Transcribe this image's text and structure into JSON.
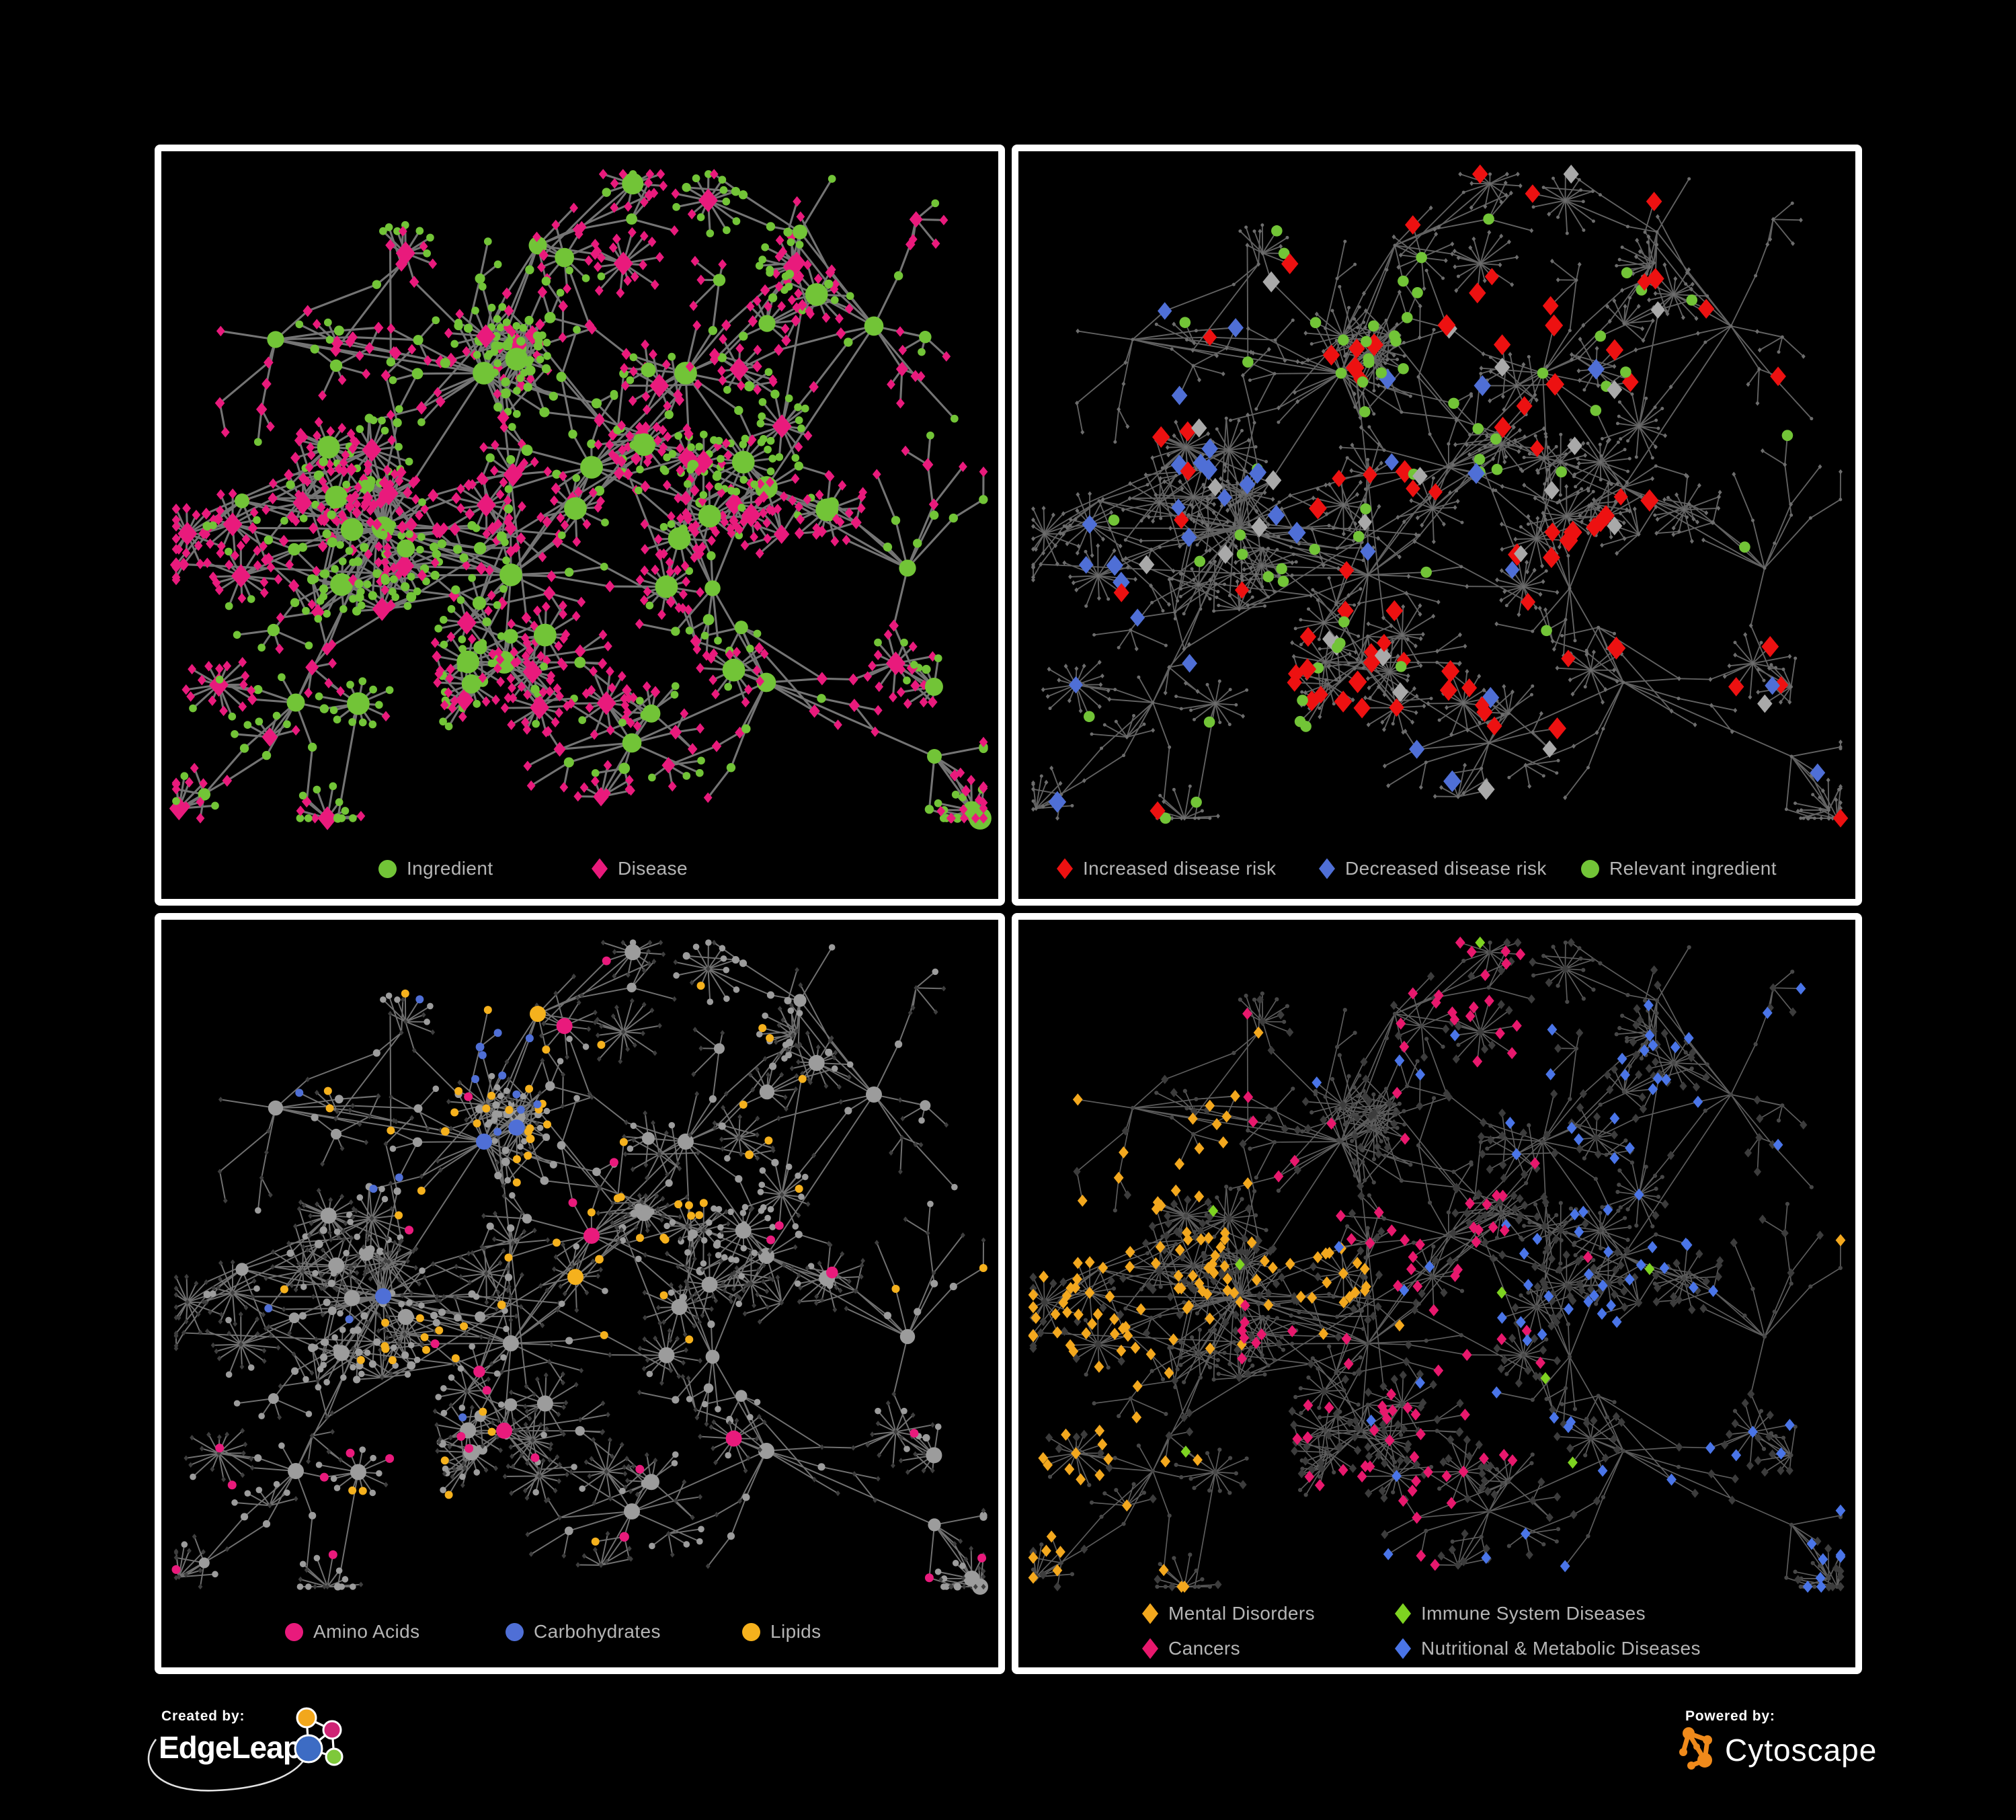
{
  "branding": {
    "created_by_label": "Created by:",
    "edgeleap_name": "EdgeLeap",
    "powered_by_label": "Powered by:",
    "cytoscape_name": "Cytoscape"
  },
  "colors": {
    "background": "#000000",
    "panel_border": "#ffffff",
    "legend_text": "#b5b5b5",
    "edge_gray": "#7b7b7b",
    "ingredient_green": "#72c437",
    "disease_pink": "#e91a7c",
    "risk_red": "#ed1111",
    "risk_blue": "#4f6fd6",
    "neutral_gray": "#a9a9a9",
    "amino_pink": "#e91a7c",
    "carb_blue": "#4f6fd6",
    "lipid_orange": "#f5b11d",
    "mental_orange": "#f3a81e",
    "immune_green": "#7ed321",
    "cancer_pink": "#e8186d",
    "nutritional_blue": "#4a75e8",
    "edgeleap_logo_orange": "#f2a71c",
    "edgeleap_logo_magenta": "#cf2475",
    "edgeleap_logo_blue": "#3d6cc4",
    "edgeleap_logo_green": "#7ec83a",
    "cytoscape_logo_orange": "#ef8a1b"
  },
  "panels": [
    {
      "id": "ingredients-diseases",
      "legend": [
        {
          "shape": "circle",
          "color": "#72c437",
          "label": "Ingredient"
        },
        {
          "shape": "diamond",
          "color": "#e91a7c",
          "label": "Disease"
        }
      ]
    },
    {
      "id": "disease-risk",
      "legend": [
        {
          "shape": "diamond",
          "color": "#ed1111",
          "label": "Increased disease risk"
        },
        {
          "shape": "diamond",
          "color": "#4f6fd6",
          "label": "Decreased disease risk"
        },
        {
          "shape": "circle",
          "color": "#72c437",
          "label": "Relevant ingredient"
        }
      ]
    },
    {
      "id": "ingredient-classes",
      "legend": [
        {
          "shape": "circle",
          "color": "#e91a7c",
          "label": "Amino Acids"
        },
        {
          "shape": "circle",
          "color": "#4f6fd6",
          "label": "Carbohydrates"
        },
        {
          "shape": "circle",
          "color": "#f5b11d",
          "label": "Lipids"
        }
      ]
    },
    {
      "id": "disease-categories",
      "legend": [
        {
          "shape": "diamond",
          "color": "#f3a81e",
          "label": "Mental Disorders"
        },
        {
          "shape": "diamond",
          "color": "#7ed321",
          "label": "Immune System Diseases"
        },
        {
          "shape": "diamond",
          "color": "#e8186d",
          "label": "Cancers"
        },
        {
          "shape": "diamond",
          "color": "#4a75e8",
          "label": "Nutritional & Metabolic Diseases"
        }
      ]
    }
  ]
}
